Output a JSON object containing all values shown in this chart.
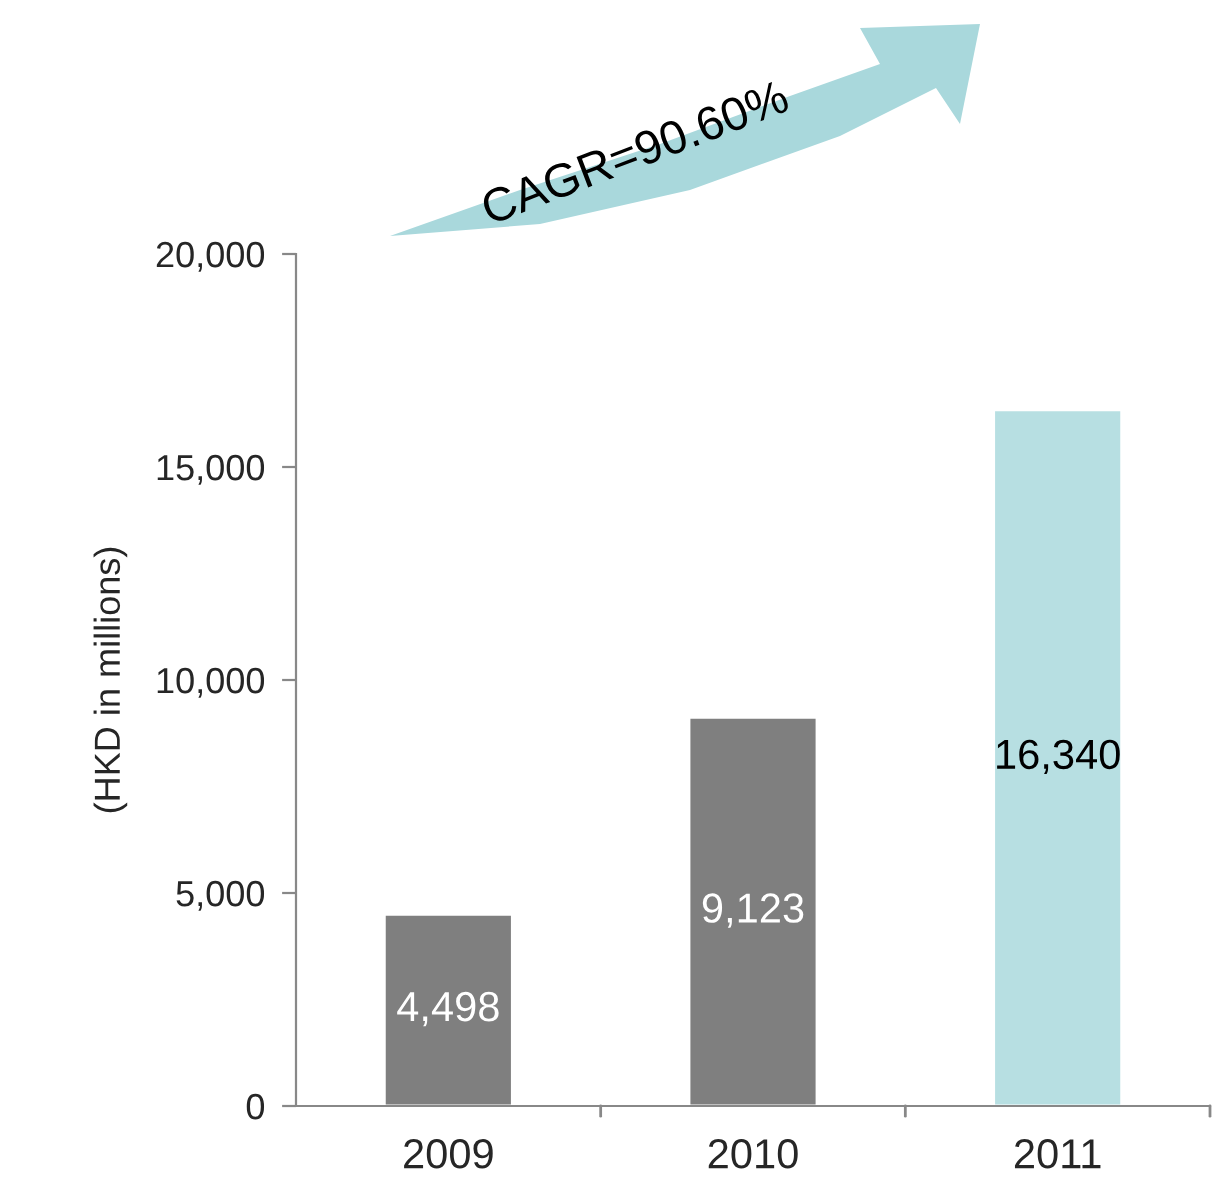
{
  "chart_data": {
    "type": "bar",
    "ylabel": "(HKD in millions)",
    "categories": [
      "2009",
      "2010",
      "2011"
    ],
    "values": [
      4498,
      9123,
      16340
    ],
    "colors": [
      "#7f7f7f",
      "#7f7f7f",
      "#b7dfe2"
    ],
    "ylim": [
      0,
      20000
    ],
    "yticks": [
      {
        "value": 0,
        "label": "0"
      },
      {
        "value": 5000,
        "label": "5,000"
      },
      {
        "value": 10000,
        "label": "10,000"
      },
      {
        "value": 15000,
        "label": "15,000"
      },
      {
        "value": 20000,
        "label": "20,000"
      }
    ],
    "value_labels": [
      "4,498",
      "9,123",
      "16,340"
    ],
    "grid": false,
    "legend": false,
    "annotations": [
      "CAGR=90.60%"
    ]
  }
}
